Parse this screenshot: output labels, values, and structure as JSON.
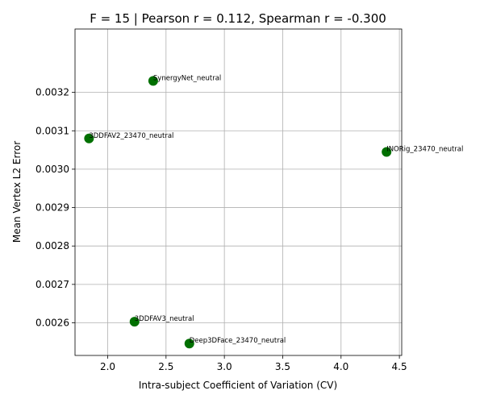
{
  "chart_data": {
    "type": "scatter",
    "title": "F = 15 | Pearson r = 0.112, Spearman r = -0.300",
    "xlabel": "Intra-subject Coefficient of Variation (CV)",
    "ylabel": "Mean Vertex L2 Error",
    "xlim": [
      1.72,
      4.52
    ],
    "ylim": [
      0.002515,
      0.003365
    ],
    "xticks": [
      2.0,
      2.5,
      3.0,
      3.5,
      4.0,
      4.5
    ],
    "xtick_labels": [
      "2.0",
      "2.5",
      "3.0",
      "3.5",
      "4.0",
      "4.5"
    ],
    "yticks": [
      0.0026,
      0.0027,
      0.0028,
      0.0029,
      0.003,
      0.0031,
      0.0032
    ],
    "ytick_labels": [
      "0.0026",
      "0.0027",
      "0.0028",
      "0.0029",
      "0.0030",
      "0.0031",
      "0.0032"
    ],
    "grid": true,
    "marker_color": "#007000",
    "points": [
      {
        "label": "SynergyNet_neutral",
        "x": 2.39,
        "y": 0.00323
      },
      {
        "label": "3DDFAV2_23470_neutral",
        "x": 1.84,
        "y": 0.00308
      },
      {
        "label": "INORig_23470_neutral",
        "x": 4.39,
        "y": 0.003045
      },
      {
        "label": "3DDFAV3_neutral",
        "x": 2.23,
        "y": 0.002603
      },
      {
        "label": "Deep3DFace_23470_neutral",
        "x": 2.7,
        "y": 0.002546
      }
    ]
  }
}
